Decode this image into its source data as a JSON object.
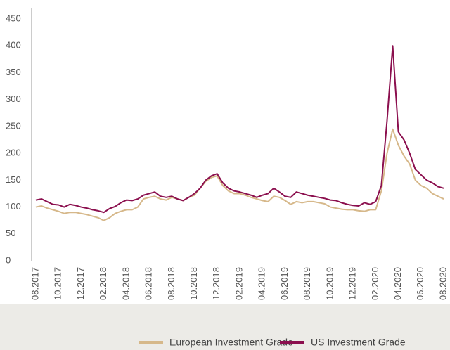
{
  "chart_data": {
    "type": "line",
    "categories": [
      "08.2017",
      null,
      null,
      null,
      "10.2017",
      null,
      null,
      null,
      "12.2017",
      null,
      null,
      null,
      "02.2018",
      null,
      null,
      null,
      "04.2018",
      null,
      null,
      null,
      "06.2018",
      null,
      null,
      null,
      "08.2018",
      null,
      null,
      null,
      "10.2018",
      null,
      null,
      null,
      "12.2018",
      null,
      null,
      null,
      "02.2019",
      null,
      null,
      null,
      "04.2019",
      null,
      null,
      null,
      "06.2019",
      null,
      null,
      null,
      "08.2019",
      null,
      null,
      null,
      "10.2019",
      null,
      null,
      null,
      "12.2019",
      null,
      null,
      null,
      "02.2020",
      null,
      null,
      null,
      "04.2020",
      null,
      null,
      null,
      "06.2020",
      null,
      null,
      null,
      "08.2020"
    ],
    "series": [
      {
        "name": "European Investment Grade",
        "color": "#d6b88a",
        "values": [
          100,
          102,
          98,
          95,
          92,
          88,
          90,
          90,
          88,
          86,
          83,
          80,
          75,
          80,
          88,
          92,
          95,
          95,
          100,
          115,
          118,
          120,
          115,
          113,
          118,
          115,
          112,
          118,
          122,
          135,
          148,
          155,
          158,
          140,
          130,
          125,
          125,
          122,
          118,
          115,
          112,
          110,
          120,
          118,
          112,
          105,
          110,
          108,
          110,
          110,
          108,
          106,
          100,
          98,
          96,
          95,
          95,
          93,
          92,
          95,
          95,
          130,
          200,
          245,
          215,
          195,
          180,
          150,
          140,
          135,
          125,
          120,
          115
        ]
      },
      {
        "name": "US Investment Grade",
        "color": "#8b0f4e",
        "values": [
          113,
          115,
          110,
          105,
          104,
          100,
          105,
          103,
          100,
          98,
          95,
          93,
          90,
          97,
          101,
          108,
          113,
          112,
          115,
          122,
          125,
          128,
          120,
          118,
          120,
          115,
          112,
          118,
          125,
          135,
          150,
          158,
          162,
          145,
          135,
          130,
          128,
          125,
          122,
          118,
          122,
          125,
          135,
          128,
          120,
          118,
          128,
          125,
          122,
          120,
          118,
          116,
          113,
          112,
          108,
          105,
          103,
          102,
          108,
          105,
          110,
          140,
          260,
          400,
          240,
          225,
          200,
          170,
          160,
          150,
          145,
          138,
          135
        ]
      }
    ],
    "ylim": [
      0,
      450
    ],
    "yticks": [
      0,
      50,
      100,
      150,
      200,
      250,
      300,
      350,
      400,
      450
    ],
    "legend": "bottom"
  }
}
